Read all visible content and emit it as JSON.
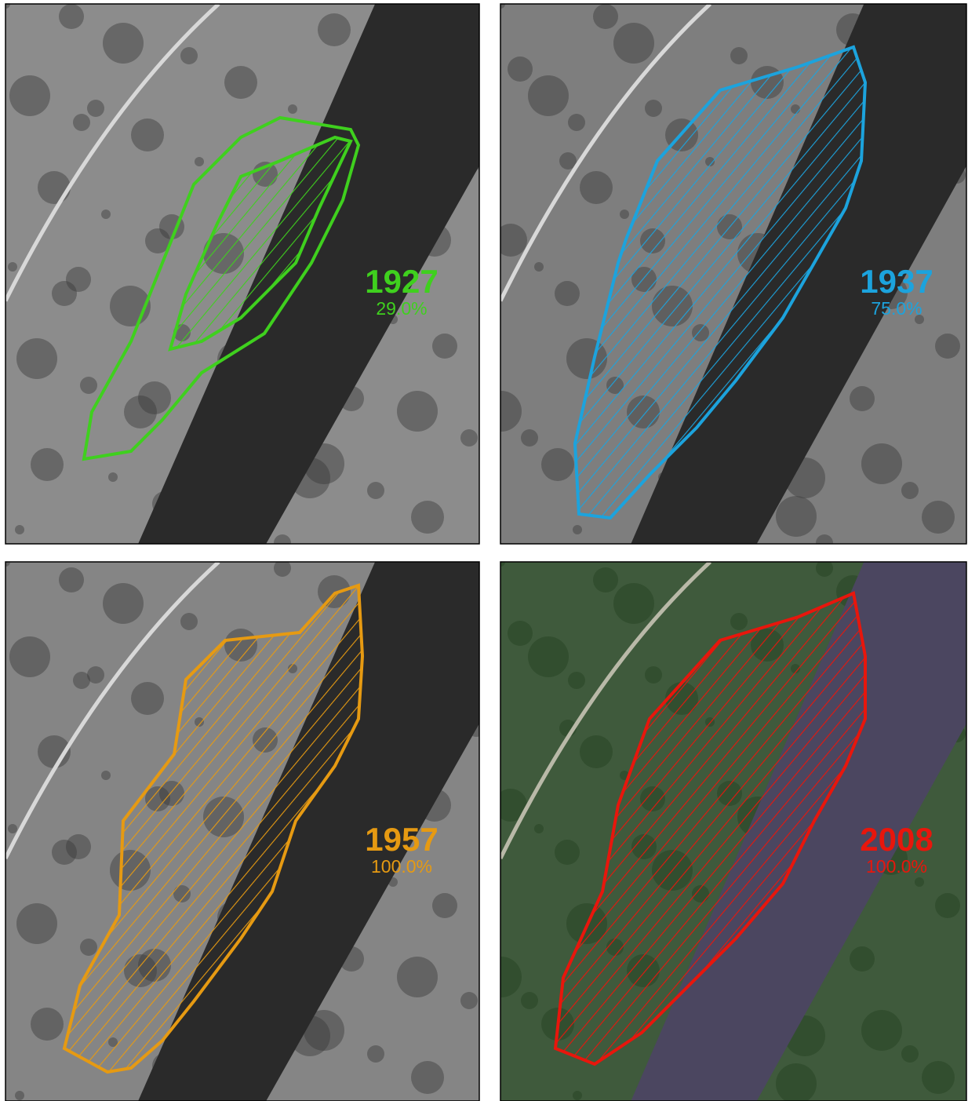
{
  "panels": [
    {
      "year": "1927",
      "percent": "29.0%",
      "color": "#3fd01e",
      "photo": "#8c8c8c"
    },
    {
      "year": "1937",
      "percent": "75.0%",
      "color": "#1ca3dd",
      "photo": "#7e7e7e"
    },
    {
      "year": "1957",
      "percent": "100.0%",
      "color": "#e69a12",
      "photo": "#858585"
    },
    {
      "year": "2008",
      "percent": "100.0%",
      "color": "#e8160c",
      "photo": "#3f5a3c"
    }
  ]
}
